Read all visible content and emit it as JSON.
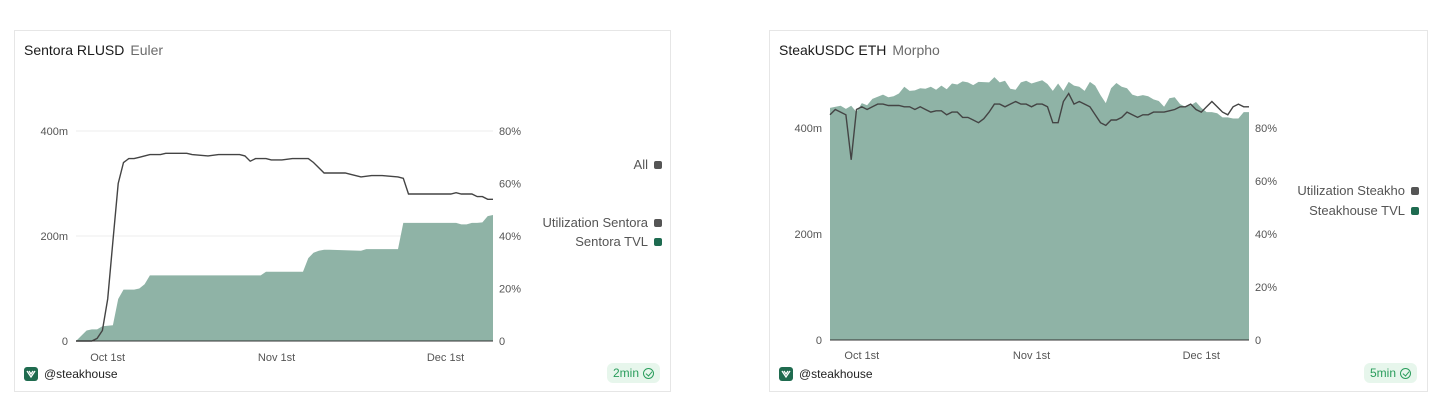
{
  "colors": {
    "tvl_fill": "#8fb3a6",
    "utilization_line": "#444444",
    "grid": "#ececec",
    "tvl_swatch": "#1e6b50",
    "util_swatch": "#555555",
    "badge_text": "#2a9d5c"
  },
  "icons": {
    "brand": "steakhouse-logo-icon",
    "badge": "check-circle-icon"
  },
  "chart_data": [
    {
      "type": "area",
      "title": "Sentora RLUSD",
      "subtitle": "Euler",
      "x_ticks": [
        "Oct 1st",
        "Nov 1st",
        "Dec 1st"
      ],
      "y_left_ticks": [
        "0",
        "200m",
        "400m"
      ],
      "y_right_ticks": [
        "0",
        "20%",
        "40%",
        "60%",
        "80%"
      ],
      "y_left_range": [
        0,
        400
      ],
      "y_right_range": [
        0,
        80
      ],
      "x_range": [
        0,
        79
      ],
      "x_tick_positions": [
        6,
        38,
        70
      ],
      "legend": [
        "All",
        "Utilization Sentora",
        "Sentora TVL"
      ],
      "brand_handle": "@steakhouse",
      "freshness": "2min",
      "series": [
        {
          "name": "Sentora TVL",
          "type": "area",
          "axis": "left",
          "x": [
            0,
            2,
            3,
            4,
            5,
            7,
            8,
            9,
            10,
            11,
            12,
            13,
            14,
            15,
            35,
            36,
            43,
            44,
            45,
            46,
            47,
            48,
            54,
            55,
            61,
            62,
            63,
            70,
            71,
            72,
            73,
            74,
            75,
            76,
            77,
            78,
            79
          ],
          "values": [
            0,
            20,
            22,
            22,
            28,
            30,
            80,
            98,
            98,
            98,
            100,
            108,
            125,
            125,
            125,
            132,
            132,
            158,
            168,
            172,
            174,
            174,
            172,
            175,
            175,
            225,
            225,
            225,
            225,
            225,
            222,
            222,
            225,
            225,
            226,
            238,
            240
          ]
        },
        {
          "name": "Utilization Sentora",
          "type": "line",
          "axis": "right",
          "x": [
            0,
            2,
            3,
            4,
            5,
            6,
            7,
            8,
            9,
            10,
            11,
            12,
            13,
            14,
            15,
            16,
            17,
            18,
            20,
            21,
            22,
            25,
            27,
            28,
            29,
            30,
            31,
            32,
            33,
            34,
            35,
            36,
            37,
            38,
            39,
            41,
            44,
            45,
            46,
            47,
            48,
            50,
            51,
            52,
            54,
            56,
            57,
            58,
            61,
            62,
            63,
            64,
            66,
            68,
            69,
            70,
            71,
            72,
            73,
            74,
            75,
            76,
            77,
            78,
            79
          ],
          "values": [
            0,
            0,
            0,
            1,
            4,
            16,
            38,
            60,
            68,
            69.5,
            69.5,
            70,
            70.5,
            71,
            71,
            71,
            71.5,
            71.5,
            71.5,
            71.5,
            71,
            70.5,
            71,
            71,
            71,
            71,
            71,
            70.5,
            68.5,
            69.5,
            69.5,
            69.5,
            69,
            69,
            69,
            69.5,
            69.5,
            68,
            66,
            64,
            64,
            64,
            64,
            63.5,
            62.5,
            63,
            63,
            63,
            62.5,
            62,
            56,
            56,
            56,
            56,
            56,
            56,
            56,
            56.5,
            56,
            56,
            56,
            55,
            55,
            54,
            54
          ]
        }
      ]
    },
    {
      "type": "area",
      "title": "SteakUSDC ETH",
      "subtitle": "Morpho",
      "x_ticks": [
        "Oct 1st",
        "Nov 1st",
        "Dec 1st"
      ],
      "y_left_ticks": [
        "0",
        "200m",
        "400m"
      ],
      "y_right_ticks": [
        "0",
        "20%",
        "40%",
        "60%",
        "80%"
      ],
      "y_left_range": [
        0,
        400
      ],
      "y_right_range": [
        0,
        80
      ],
      "x_range": [
        0,
        79
      ],
      "x_tick_positions": [
        6,
        38,
        70
      ],
      "legend": [
        "Utilization Steakho",
        "Steakhouse TVL"
      ],
      "brand_handle": "@steakhouse",
      "freshness": "5min",
      "series": [
        {
          "name": "Steakhouse TVL",
          "type": "area",
          "axis": "left",
          "x": [
            0,
            2,
            3,
            4,
            5,
            6,
            7,
            8,
            10,
            11,
            12,
            13,
            14,
            15,
            16,
            17,
            18,
            19,
            20,
            21,
            22,
            23,
            24,
            25,
            26,
            27,
            28,
            30,
            31,
            32,
            33,
            34,
            35,
            36,
            37,
            38,
            39,
            40,
            41,
            42,
            43,
            44,
            45,
            46,
            47,
            48,
            49,
            50,
            51,
            52,
            53,
            54,
            55,
            56,
            57,
            58,
            59,
            60,
            61,
            62,
            63,
            64,
            65,
            66,
            67,
            68,
            69,
            70,
            71,
            72,
            73,
            74,
            75,
            76,
            77,
            78,
            79
          ],
          "values": [
            438,
            442,
            436,
            442,
            430,
            447,
            443,
            455,
            463,
            458,
            460,
            465,
            478,
            470,
            471,
            475,
            474,
            478,
            472,
            480,
            473,
            484,
            482,
            488,
            486,
            481,
            487,
            486,
            496,
            486,
            489,
            474,
            472,
            486,
            489,
            484,
            487,
            490,
            483,
            470,
            484,
            470,
            487,
            480,
            478,
            470,
            487,
            480,
            462,
            447,
            475,
            485,
            478,
            475,
            463,
            460,
            462,
            460,
            454,
            451,
            440,
            456,
            458,
            445,
            440,
            443,
            449,
            438,
            430,
            430,
            428,
            420,
            420,
            418,
            418,
            430,
            430
          ]
        },
        {
          "name": "Utilization Steakho",
          "type": "line",
          "axis": "right",
          "x": [
            0,
            1,
            2,
            3,
            4,
            5,
            6,
            7,
            8,
            9,
            10,
            11,
            12,
            13,
            14,
            15,
            16,
            17,
            18,
            19,
            20,
            21,
            22,
            23,
            24,
            25,
            26,
            27,
            28,
            29,
            30,
            31,
            32,
            33,
            34,
            35,
            36,
            37,
            38,
            39,
            40,
            41,
            42,
            43,
            44,
            45,
            46,
            47,
            48,
            49,
            50,
            51,
            52,
            53,
            54,
            55,
            56,
            57,
            58,
            59,
            60,
            61,
            62,
            63,
            64,
            65,
            66,
            67,
            68,
            69,
            70,
            71,
            72,
            73,
            74,
            75,
            76,
            77,
            78,
            79
          ],
          "values": [
            85,
            87,
            86,
            85,
            68,
            87,
            88,
            87,
            88,
            89,
            89,
            88.5,
            88.5,
            88.5,
            88,
            88,
            87,
            88,
            87,
            86,
            86.5,
            86.5,
            85,
            86,
            86,
            84,
            84,
            83,
            82,
            83.5,
            86,
            89,
            89,
            88,
            89,
            90,
            89,
            89,
            88,
            89,
            89,
            88,
            82,
            82,
            90,
            93,
            89,
            90,
            89,
            88,
            85,
            82,
            81,
            83,
            83,
            84,
            86,
            85,
            84,
            85,
            85,
            86,
            86,
            86,
            86.5,
            87,
            88,
            88,
            89,
            87,
            86,
            88,
            90,
            88,
            86,
            85,
            88,
            89,
            88,
            88
          ]
        }
      ]
    }
  ]
}
